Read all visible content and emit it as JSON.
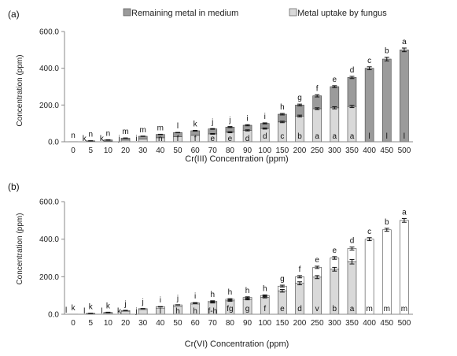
{
  "chart_data": [
    {
      "type": "bar",
      "stacked": true,
      "panel_label": "(a)",
      "xlabel": "Cr(III) Concentration (ppm)",
      "ylabel": "Concentration (ppm)",
      "ylim": [
        0,
        600
      ],
      "yticks": [
        "0.0",
        "200.0",
        "400.0",
        "600.0"
      ],
      "ytick_values": [
        0,
        200,
        400,
        600
      ],
      "legend": {
        "placement": "top",
        "entries": [
          "Remaining metal in medium",
          "Metal uptake by fungus"
        ]
      },
      "colors": {
        "remaining": "#9b9b9b",
        "uptake": "#d9d9d9"
      },
      "categories": [
        "0",
        "5",
        "10",
        "20",
        "30",
        "40",
        "50",
        "60",
        "70",
        "80",
        "90",
        "100",
        "150",
        "200",
        "250",
        "300",
        "350",
        "400",
        "450",
        "500"
      ],
      "series": [
        {
          "name": "Metal uptake by fungus",
          "values": [
            0,
            2,
            4,
            9,
            14,
            22,
            27,
            35,
            43,
            52,
            62,
            72,
            108,
            140,
            180,
            185,
            192,
            0,
            0,
            0
          ],
          "errors": [
            0,
            0,
            0,
            0,
            0,
            0,
            0,
            0,
            2,
            3,
            3,
            3,
            4,
            5,
            5,
            6,
            6,
            0,
            0,
            0
          ]
        },
        {
          "name": "Remaining metal in medium",
          "values": [
            1,
            3,
            6,
            11,
            16,
            18,
            23,
            25,
            27,
            28,
            28,
            28,
            42,
            60,
            70,
            115,
            158,
            400,
            450,
            500
          ],
          "errors": [
            0,
            1,
            1,
            1,
            1,
            1,
            1,
            2,
            2,
            3,
            3,
            3,
            4,
            5,
            6,
            5,
            6,
            8,
            10,
            10
          ]
        }
      ],
      "top_letters": [
        "n",
        "n",
        "n",
        "m",
        "m",
        "m",
        "l",
        "k",
        "j",
        "j",
        "i",
        "i",
        "h",
        "g",
        "f",
        "e",
        "d",
        "c",
        "b",
        "a"
      ],
      "inner_letters": [
        "",
        "k",
        "k",
        "j",
        "i",
        "n",
        "f",
        "f",
        "e",
        "e",
        "d",
        "d",
        "c",
        "b",
        "a",
        "a",
        "a",
        "l",
        "l",
        "l"
      ]
    },
    {
      "type": "bar",
      "stacked": true,
      "panel_label": "(b)",
      "xlabel": "Cr(VI) Concentration (ppm)",
      "ylabel": "Concentration (ppm)",
      "ylim": [
        0,
        600
      ],
      "yticks": [
        "0.0",
        "200.0",
        "400.0",
        "600.0"
      ],
      "ytick_values": [
        0,
        200,
        400,
        600
      ],
      "colors": {
        "remaining": "#ffffff",
        "uptake": "#d9d9d9"
      },
      "categories": [
        "0",
        "5",
        "10",
        "20",
        "30",
        "40",
        "50",
        "60",
        "70",
        "80",
        "90",
        "100",
        "150",
        "200",
        "250",
        "300",
        "350",
        "400",
        "450",
        "500"
      ],
      "series": [
        {
          "name": "Metal uptake by fungus",
          "values": [
            0,
            3,
            6,
            16,
            25,
            33,
            42,
            55,
            62,
            72,
            80,
            90,
            125,
            165,
            198,
            240,
            280,
            0,
            0,
            0
          ],
          "errors": [
            0,
            0,
            0,
            0,
            0,
            0,
            0,
            0,
            2,
            3,
            3,
            3,
            7,
            8,
            8,
            10,
            12,
            0,
            0,
            0
          ]
        },
        {
          "name": "Remaining metal in medium",
          "values": [
            1,
            2,
            4,
            4,
            5,
            7,
            8,
            5,
            8,
            8,
            10,
            10,
            25,
            35,
            52,
            60,
            70,
            400,
            450,
            500
          ],
          "errors": [
            0,
            1,
            1,
            1,
            1,
            1,
            1,
            2,
            2,
            3,
            3,
            3,
            5,
            6,
            6,
            7,
            8,
            8,
            8,
            10
          ]
        }
      ],
      "top_letters": [
        "k",
        "k",
        "k",
        "j",
        "j",
        "i",
        "j",
        "i",
        "h",
        "h",
        "h",
        "h",
        "g",
        "f",
        "e",
        "e",
        "d",
        "c",
        "b",
        "a"
      ],
      "inner_letters": [
        "l",
        "l",
        "l",
        "k",
        "j",
        "l",
        "h",
        "h",
        "f-h",
        "fg",
        "g",
        "f",
        "e",
        "d",
        "v",
        "b",
        "a",
        "m",
        "m",
        "m"
      ]
    }
  ]
}
